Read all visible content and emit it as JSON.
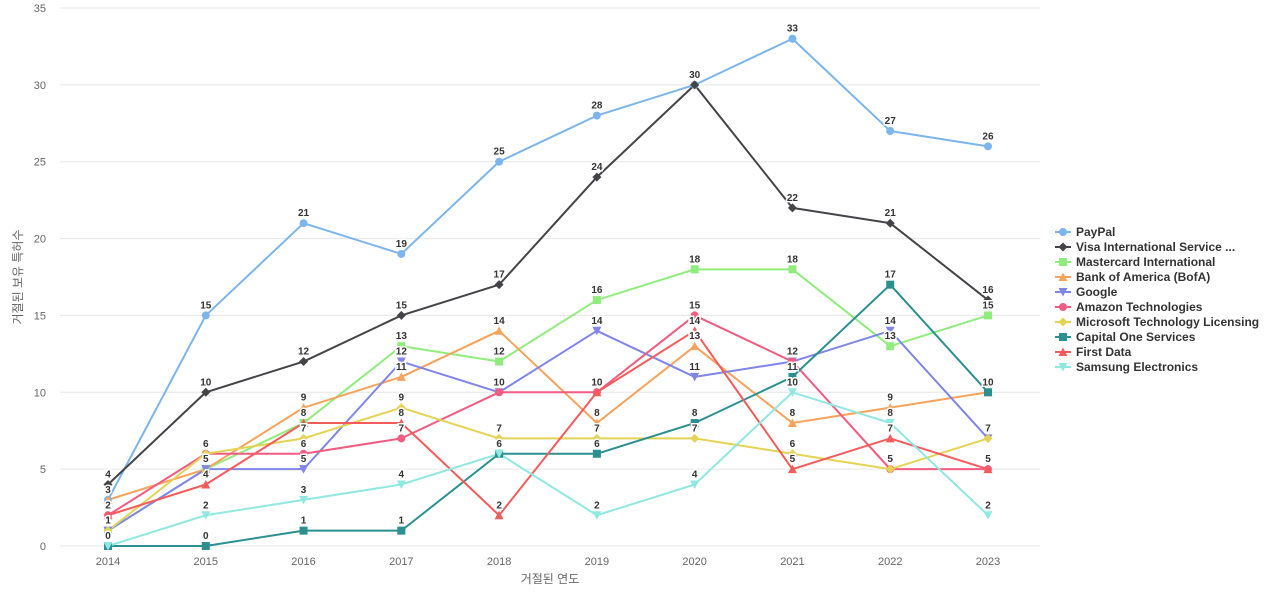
{
  "chart_data": {
    "type": "line",
    "x": [
      2014,
      2015,
      2016,
      2017,
      2018,
      2019,
      2020,
      2021,
      2022,
      2023
    ],
    "xlabel": "거절된 연도",
    "ylabel": "거절된 보유 특허수",
    "ylim": [
      0,
      35
    ],
    "yticks": [
      0,
      5,
      10,
      15,
      20,
      25,
      30,
      35
    ],
    "grid": true,
    "legend_position": "right-middle",
    "data_labels": true,
    "series": [
      {
        "name": "PayPal",
        "slug": "paypal",
        "color": "#7cb5ec",
        "marker": "circle",
        "values": [
          3,
          15,
          21,
          19,
          25,
          28,
          30,
          33,
          27,
          26
        ]
      },
      {
        "name": "Visa International Service ...",
        "slug": "visa",
        "color": "#434348",
        "marker": "diamond",
        "values": [
          4,
          10,
          12,
          15,
          17,
          24,
          30,
          22,
          21,
          16
        ]
      },
      {
        "name": "Mastercard International",
        "slug": "mastercard",
        "color": "#90ed7d",
        "marker": "square",
        "values": [
          1,
          5,
          8,
          13,
          12,
          16,
          18,
          18,
          13,
          15
        ]
      },
      {
        "name": "Bank of America (BofA)",
        "slug": "bofa",
        "color": "#f7a35c",
        "marker": "triangle",
        "values": [
          3,
          5,
          9,
          11,
          14,
          8,
          13,
          8,
          9,
          10
        ]
      },
      {
        "name": "Google",
        "slug": "google",
        "color": "#8085e9",
        "marker": "triangle-down",
        "values": [
          1,
          5,
          5,
          12,
          10,
          14,
          11,
          12,
          14,
          7
        ]
      },
      {
        "name": "Amazon Technologies",
        "slug": "amazon",
        "color": "#f15c80",
        "marker": "circle",
        "values": [
          2,
          6,
          6,
          7,
          10,
          10,
          15,
          12,
          5,
          5
        ]
      },
      {
        "name": "Microsoft Technology Licensing",
        "slug": "microsoft",
        "color": "#e4d354",
        "marker": "diamond",
        "values": [
          1,
          6,
          7,
          9,
          7,
          7,
          7,
          6,
          5,
          7
        ]
      },
      {
        "name": "Capital One Services",
        "slug": "capital-one",
        "color": "#2b908f",
        "marker": "square",
        "values": [
          0,
          0,
          1,
          1,
          6,
          6,
          8,
          11,
          17,
          10
        ]
      },
      {
        "name": "First Data",
        "slug": "first-data",
        "color": "#f45b5b",
        "marker": "triangle",
        "values": [
          2,
          4,
          8,
          8,
          2,
          10,
          14,
          5,
          7,
          5
        ]
      },
      {
        "name": "Samsung Electronics",
        "slug": "samsung",
        "color": "#91e8e1",
        "marker": "triangle-down",
        "values": [
          0,
          2,
          3,
          4,
          6,
          2,
          4,
          10,
          8,
          2
        ]
      }
    ]
  }
}
